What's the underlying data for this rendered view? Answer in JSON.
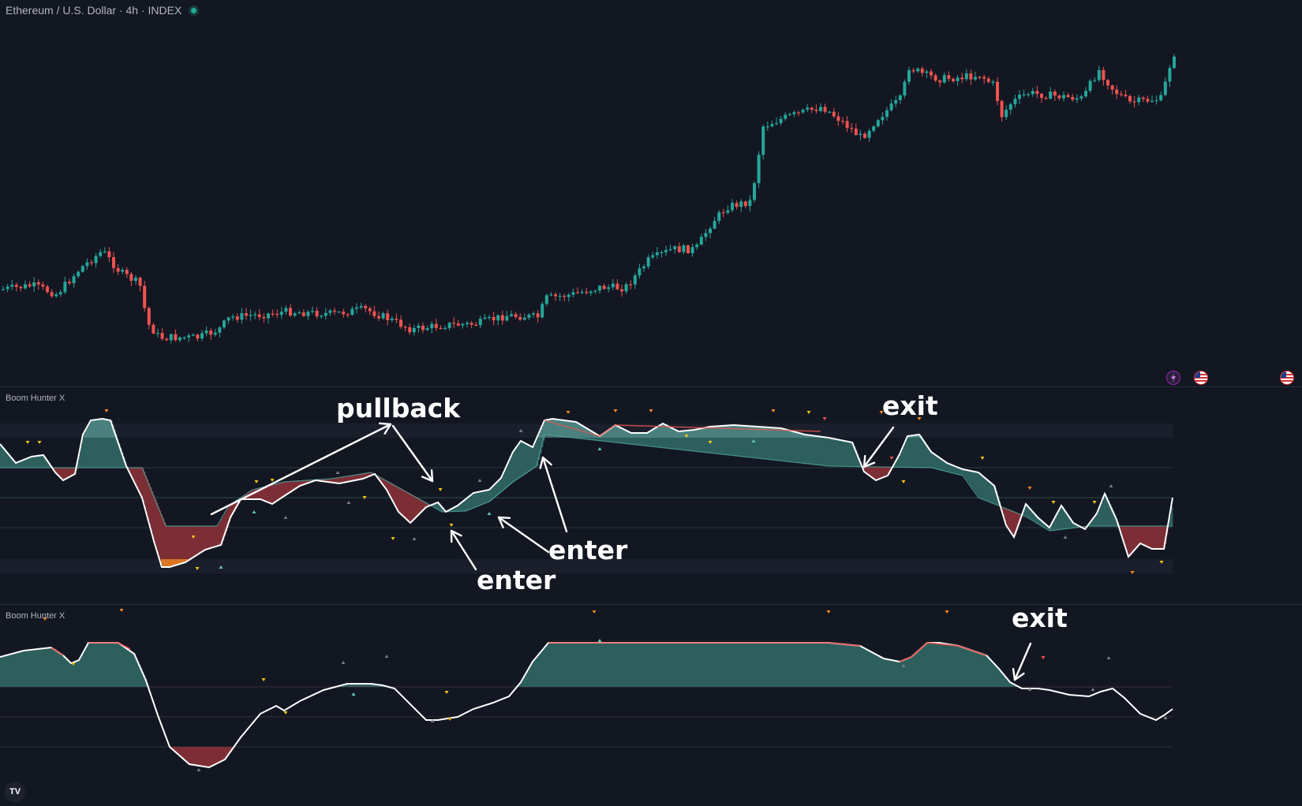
{
  "header": {
    "symbol_title": "Ethereum / U.S. Dollar · 4h · INDEX"
  },
  "indicators": [
    {
      "title": "Boom Hunter X"
    },
    {
      "title": "Boom Hunter X"
    }
  ],
  "annotations": {
    "pullback": "pullback",
    "exit_1": "exit",
    "enter_1": "enter",
    "enter_2": "enter",
    "exit_2": "exit"
  },
  "colors": {
    "background": "#131722",
    "bull": "#26a69a",
    "bear": "#ef5350",
    "oscillator_line": "#ffffff",
    "bull_fill": "#2d5f5d",
    "bear_fill": "#7d2e35",
    "marker_yellow": "#f0c419",
    "marker_orange": "#f58a1f",
    "marker_teal": "#5ec7c0",
    "marker_gray": "#787b86"
  },
  "logo_text": "TV",
  "icons": [
    "lightning-event-icon",
    "us-flag-event-icon",
    "us-flag-event-icon"
  ]
}
